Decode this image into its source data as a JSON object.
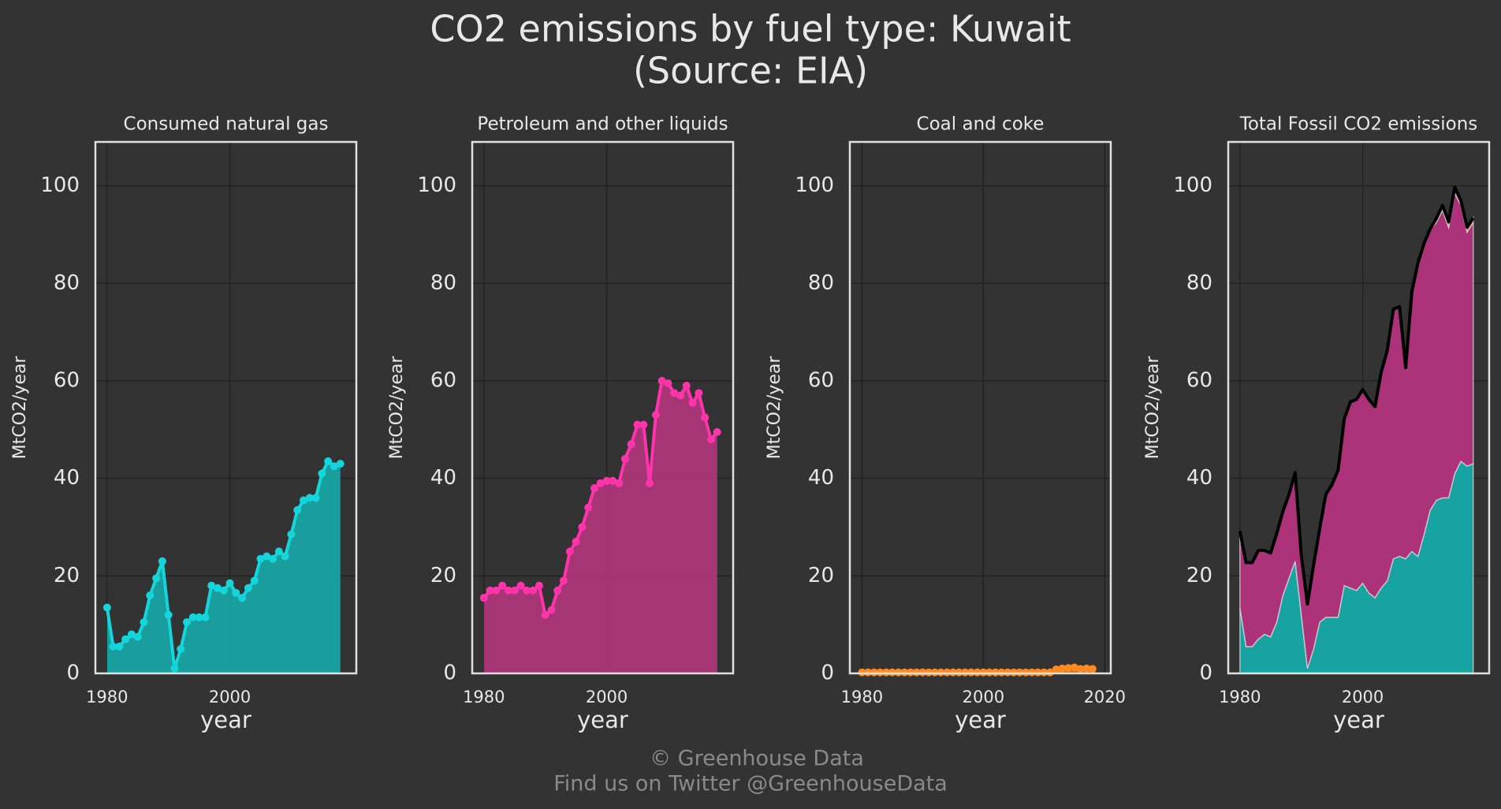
{
  "title": "CO2 emissions by fuel type: Kuwait",
  "subtitle": "(Source: EIA)",
  "footer": [
    "© Greenhouse Data",
    "Find us on Twitter @GreenhouseData"
  ],
  "chart_data": [
    {
      "type": "area",
      "title": "Consumed natural gas",
      "xlabel": "year",
      "ylabel": "MtCO2/year",
      "x": [
        1980,
        1981,
        1982,
        1983,
        1984,
        1985,
        1986,
        1987,
        1988,
        1989,
        1990,
        1991,
        1992,
        1993,
        1994,
        1995,
        1996,
        1997,
        1998,
        1999,
        2000,
        2001,
        2002,
        2003,
        2004,
        2005,
        2006,
        2007,
        2008,
        2009,
        2010,
        2011,
        2012,
        2013,
        2014,
        2015,
        2016,
        2017,
        2018
      ],
      "series": [
        {
          "color": "#12d6dc",
          "fill": "#17a9a8",
          "values": [
            13.5,
            5.5,
            5.5,
            7,
            8,
            7.5,
            10.5,
            16,
            19.5,
            23,
            12,
            1,
            5,
            10.5,
            11.5,
            11.5,
            11.5,
            18,
            17.5,
            17,
            18.5,
            16.5,
            15.5,
            17.5,
            19,
            23.5,
            24,
            23.5,
            25,
            24,
            28.5,
            33.5,
            35.5,
            36,
            36,
            41,
            43.5,
            42.5,
            43
          ]
        }
      ],
      "xlim": [
        1978.1,
        2020.6
      ],
      "ylim": [
        0,
        109
      ],
      "xticks": [
        1980,
        2000
      ],
      "yticks": [
        0,
        20,
        40,
        60,
        80,
        100
      ],
      "grid": true
    },
    {
      "type": "area",
      "title": "Petroleum and other liquids",
      "xlabel": "year",
      "ylabel": "MtCO2/year",
      "x": [
        1980,
        1981,
        1982,
        1983,
        1984,
        1985,
        1986,
        1987,
        1988,
        1989,
        1990,
        1991,
        1992,
        1993,
        1994,
        1995,
        1996,
        1997,
        1998,
        1999,
        2000,
        2001,
        2002,
        2003,
        2004,
        2005,
        2006,
        2007,
        2008,
        2009,
        2010,
        2011,
        2012,
        2013,
        2014,
        2015,
        2016,
        2017,
        2018
      ],
      "series": [
        {
          "color": "#ff33aa",
          "fill": "#b2357d",
          "values": [
            15.5,
            17,
            17,
            18,
            17,
            17,
            18,
            17,
            17,
            18,
            12,
            13,
            17,
            19,
            25,
            27,
            30,
            34,
            38,
            39,
            39.5,
            39.5,
            39,
            44,
            47,
            51,
            51,
            39,
            53,
            60,
            59.5,
            57.5,
            57,
            59,
            55.5,
            57.5,
            52.5,
            48,
            49.5
          ]
        }
      ],
      "xlim": [
        1978.1,
        2020.6
      ],
      "ylim": [
        0,
        109
      ],
      "xticks": [
        1980,
        2000
      ],
      "yticks": [
        0,
        20,
        40,
        60,
        80,
        100
      ],
      "grid": true
    },
    {
      "type": "area",
      "title": "Coal and coke",
      "xlabel": "year",
      "ylabel": "MtCO2/year",
      "x": [
        1980,
        1981,
        1982,
        1983,
        1984,
        1985,
        1986,
        1987,
        1988,
        1989,
        1990,
        1991,
        1992,
        1993,
        1994,
        1995,
        1996,
        1997,
        1998,
        1999,
        2000,
        2001,
        2002,
        2003,
        2004,
        2005,
        2006,
        2007,
        2008,
        2009,
        2010,
        2011,
        2012,
        2013,
        2014,
        2015,
        2016,
        2017,
        2018
      ],
      "series": [
        {
          "color": "#ff8a1f",
          "fill": "#c8701c",
          "values": [
            0.2,
            0.2,
            0.2,
            0.2,
            0.2,
            0.2,
            0.2,
            0.2,
            0.2,
            0.2,
            0.2,
            0.2,
            0.2,
            0.2,
            0.2,
            0.2,
            0.2,
            0.2,
            0.2,
            0.2,
            0.2,
            0.2,
            0.2,
            0.2,
            0.2,
            0.2,
            0.2,
            0.2,
            0.2,
            0.2,
            0.2,
            0.2,
            0.8,
            1,
            1.1,
            1.2,
            0.9,
            1,
            0.9
          ]
        }
      ],
      "xlim": [
        1978,
        2021
      ],
      "ylim": [
        0,
        109
      ],
      "xticks": [
        1980,
        2000,
        2020
      ],
      "yticks": [
        0,
        20,
        40,
        60,
        80,
        100
      ],
      "grid": true
    },
    {
      "type": "stacked_area",
      "title": "Total Fossil CO2 emissions",
      "xlabel": "year",
      "ylabel": "MtCO2/year",
      "x": [
        1980,
        1981,
        1982,
        1983,
        1984,
        1985,
        1986,
        1987,
        1988,
        1989,
        1990,
        1991,
        1992,
        1993,
        1994,
        1995,
        1996,
        1997,
        1998,
        1999,
        2000,
        2001,
        2002,
        2003,
        2004,
        2005,
        2006,
        2007,
        2008,
        2009,
        2010,
        2011,
        2012,
        2013,
        2014,
        2015,
        2016,
        2017,
        2018
      ],
      "series": [
        {
          "color": "#17a3a1",
          "values": [
            13.5,
            5.5,
            5.5,
            7,
            8,
            7.5,
            10.5,
            16,
            19.5,
            23,
            12,
            1,
            5,
            10.5,
            11.5,
            11.5,
            11.5,
            18,
            17.5,
            17,
            18.5,
            16.5,
            15.5,
            17.5,
            19,
            23.5,
            24,
            23.5,
            25,
            24,
            28.5,
            33.5,
            35.5,
            36,
            36,
            41,
            43.5,
            42.5,
            43
          ]
        },
        {
          "color": "#ac3279",
          "values": [
            15.5,
            17,
            17,
            18,
            17,
            17,
            18,
            17,
            17,
            18,
            12,
            13,
            17,
            19,
            25,
            27,
            30,
            34,
            38,
            39,
            39.5,
            39.5,
            39,
            44,
            47,
            51,
            51,
            39,
            53,
            60,
            59.5,
            57.5,
            57,
            59,
            55.5,
            57.5,
            52.5,
            48,
            49.5
          ]
        },
        {
          "color": "#c8701c",
          "values": [
            0.2,
            0.2,
            0.2,
            0.2,
            0.2,
            0.2,
            0.2,
            0.2,
            0.2,
            0.2,
            0.2,
            0.2,
            0.2,
            0.2,
            0.2,
            0.2,
            0.2,
            0.2,
            0.2,
            0.2,
            0.2,
            0.2,
            0.2,
            0.2,
            0.2,
            0.2,
            0.2,
            0.2,
            0.2,
            0.2,
            0.2,
            0.2,
            0.8,
            1,
            1.1,
            1.2,
            0.9,
            1,
            0.9
          ]
        }
      ],
      "total_color": "#000000",
      "xlim": [
        1978.1,
        2020.6
      ],
      "ylim": [
        0,
        109
      ],
      "xticks": [
        1980,
        2000
      ],
      "yticks": [
        0,
        20,
        40,
        60,
        80,
        100
      ],
      "grid": true
    }
  ]
}
